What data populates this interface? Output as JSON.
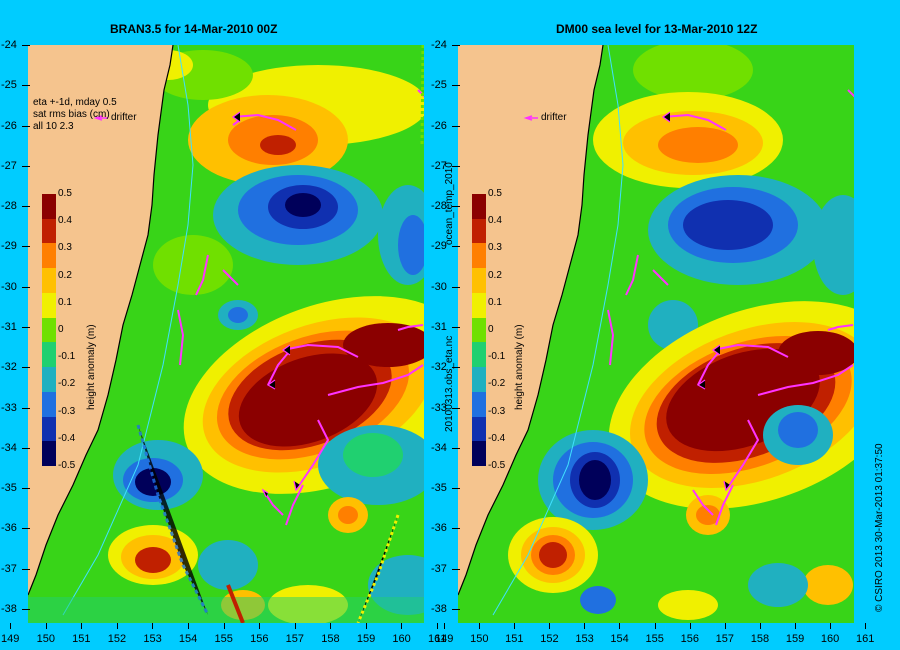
{
  "left_panel": {
    "title": "BRAN3.5  for 14-Mar-2010 00Z",
    "notes": [
      "eta +-1d, mday 0.5",
      "sat rms bias (cm)",
      "all 10 2.3"
    ],
    "legend_drifter": "drifter"
  },
  "right_panel": {
    "title": "DM00 sea level  for 13-Mar-2010 12Z",
    "legend_drifter": "drifter"
  },
  "colorbar": {
    "label": "height anomaly (m)",
    "ticks": [
      "0.5",
      "0.4",
      "0.3",
      "0.2",
      "0.1",
      "0",
      "-0.1",
      "-0.2",
      "-0.3",
      "-0.4",
      "-0.5"
    ],
    "colors": [
      "#8b0000",
      "#c02000",
      "#ff7f00",
      "#ffc000",
      "#f0f000",
      "#70e000",
      "#20d070",
      "#20b0c0",
      "#2070e0",
      "#1030b0",
      "#00005a"
    ]
  },
  "axes": {
    "x_ticks": [
      "149",
      "150",
      "151",
      "152",
      "153",
      "154",
      "155",
      "156",
      "157",
      "158",
      "159",
      "160",
      "161"
    ],
    "y_ticks": [
      "-24",
      "-25",
      "-26",
      "-27",
      "-28",
      "-29",
      "-30",
      "-31",
      "-32",
      "-33",
      "-34",
      "-35",
      "-36",
      "-37",
      "-38"
    ]
  },
  "side_labels": {
    "middle_top": "ocean_temp_2010",
    "middle_bottom": "20100313.obs_eta.nc",
    "right": "© CSIRO 2013   30-Mar-2013 01:37:50"
  },
  "colors": {
    "background": "#00ccff",
    "land": "#f5c48e",
    "drifter": "#ff33ff"
  }
}
